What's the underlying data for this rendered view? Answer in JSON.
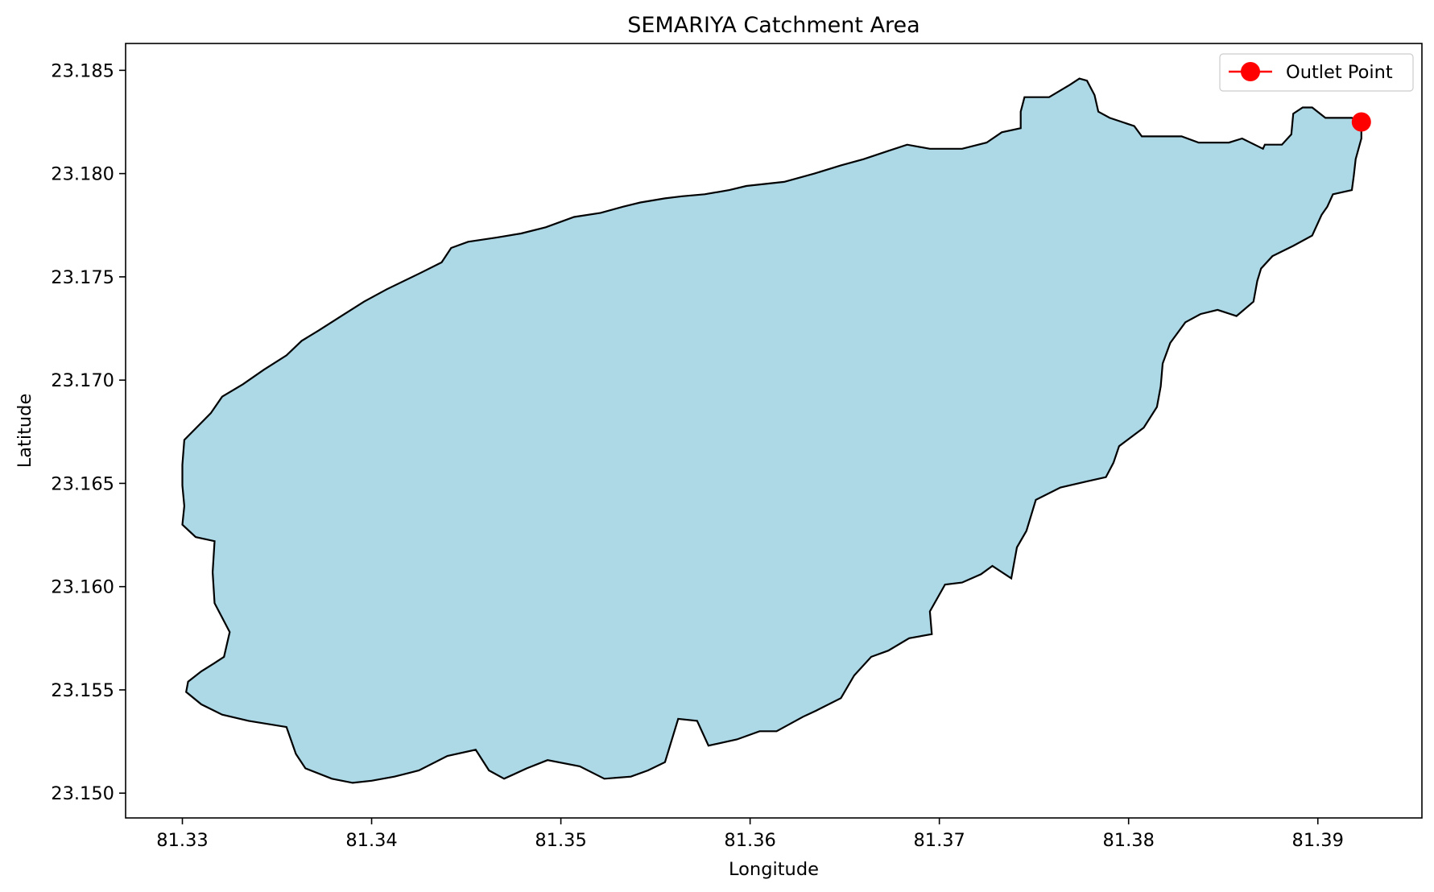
{
  "chart_data": {
    "type": "map",
    "title": "SEMARIYA Catchment Area",
    "xlabel": "Longitude",
    "ylabel": "Latitude",
    "xlim": [
      81.327,
      81.3955
    ],
    "ylim": [
      23.1488,
      23.1863
    ],
    "grid": false,
    "legend": {
      "placement": "top-right",
      "entries": [
        "Outlet Point"
      ]
    },
    "x_ticks": [
      81.33,
      81.34,
      81.35,
      81.36,
      81.37,
      81.38,
      81.39
    ],
    "x_tick_labels": [
      "81.33",
      "81.34",
      "81.35",
      "81.36",
      "81.37",
      "81.38",
      "81.39"
    ],
    "y_ticks": [
      23.15,
      23.155,
      23.16,
      23.165,
      23.17,
      23.175,
      23.18,
      23.185
    ],
    "y_tick_labels": [
      "23.150",
      "23.155",
      "23.160",
      "23.165",
      "23.170",
      "23.175",
      "23.180",
      "23.185"
    ],
    "series": [
      {
        "name": "Catchment",
        "type": "polygon",
        "fill_color": "#add8e6",
        "edge_color": "#000000",
        "points": [
          [
            81.3923,
            23.1826
          ],
          [
            81.392,
            23.1826
          ],
          [
            81.3918,
            23.1827
          ],
          [
            81.3904,
            23.1827
          ],
          [
            81.3897,
            23.1832
          ],
          [
            81.3892,
            23.1832
          ],
          [
            81.3887,
            23.1829
          ],
          [
            81.3886,
            23.1819
          ],
          [
            81.3881,
            23.1814
          ],
          [
            81.3872,
            23.1814
          ],
          [
            81.3871,
            23.1812
          ],
          [
            81.386,
            23.1817
          ],
          [
            81.3853,
            23.1815
          ],
          [
            81.3837,
            23.1815
          ],
          [
            81.3828,
            23.1818
          ],
          [
            81.3807,
            23.1818
          ],
          [
            81.3803,
            23.1823
          ],
          [
            81.379,
            23.1827
          ],
          [
            81.3784,
            23.183
          ],
          [
            81.3782,
            23.1838
          ],
          [
            81.3778,
            23.1845
          ],
          [
            81.3774,
            23.1846
          ],
          [
            81.3769,
            23.1843
          ],
          [
            81.3758,
            23.1837
          ],
          [
            81.3745,
            23.1837
          ],
          [
            81.3743,
            23.183
          ],
          [
            81.3743,
            23.1822
          ],
          [
            81.3733,
            23.182
          ],
          [
            81.3725,
            23.1815
          ],
          [
            81.3712,
            23.1812
          ],
          [
            81.3695,
            23.1812
          ],
          [
            81.3683,
            23.1814
          ],
          [
            81.3673,
            23.1811
          ],
          [
            81.366,
            23.1807
          ],
          [
            81.3648,
            23.1804
          ],
          [
            81.3634,
            23.18
          ],
          [
            81.3618,
            23.1796
          ],
          [
            81.3598,
            23.1794
          ],
          [
            81.3589,
            23.1792
          ],
          [
            81.3576,
            23.179
          ],
          [
            81.3564,
            23.1789
          ],
          [
            81.3555,
            23.1788
          ],
          [
            81.3542,
            23.1786
          ],
          [
            81.3533,
            23.1784
          ],
          [
            81.3521,
            23.1781
          ],
          [
            81.3507,
            23.1779
          ],
          [
            81.3492,
            23.1774
          ],
          [
            81.3479,
            23.1771
          ],
          [
            81.3466,
            23.1769
          ],
          [
            81.3451,
            23.1767
          ],
          [
            81.3442,
            23.1764
          ],
          [
            81.3437,
            23.1757
          ],
          [
            81.3426,
            23.1752
          ],
          [
            81.3408,
            23.1744
          ],
          [
            81.3396,
            23.1738
          ],
          [
            81.3384,
            23.1731
          ],
          [
            81.3372,
            23.1724
          ],
          [
            81.3363,
            23.1719
          ],
          [
            81.3355,
            23.1712
          ],
          [
            81.3343,
            23.1705
          ],
          [
            81.3332,
            23.1698
          ],
          [
            81.3321,
            23.1692
          ],
          [
            81.3315,
            23.1684
          ],
          [
            81.3301,
            23.1671
          ],
          [
            81.33,
            23.1659
          ],
          [
            81.33,
            23.1649
          ],
          [
            81.3301,
            23.1639
          ],
          [
            81.33,
            23.163
          ],
          [
            81.3307,
            23.1624
          ],
          [
            81.3317,
            23.1622
          ],
          [
            81.3316,
            23.1607
          ],
          [
            81.3317,
            23.1592
          ],
          [
            81.3325,
            23.1578
          ],
          [
            81.3322,
            23.1566
          ],
          [
            81.3317,
            23.1563
          ],
          [
            81.331,
            23.1559
          ],
          [
            81.3303,
            23.1554
          ],
          [
            81.3302,
            23.1549
          ],
          [
            81.331,
            23.1543
          ],
          [
            81.3321,
            23.1538
          ],
          [
            81.3335,
            23.1535
          ],
          [
            81.3355,
            23.1532
          ],
          [
            81.336,
            23.1519
          ],
          [
            81.3365,
            23.1512
          ],
          [
            81.3379,
            23.1507
          ],
          [
            81.339,
            23.1505
          ],
          [
            81.34,
            23.1506
          ],
          [
            81.3412,
            23.1508
          ],
          [
            81.3425,
            23.1511
          ],
          [
            81.344,
            23.1518
          ],
          [
            81.3455,
            23.1521
          ],
          [
            81.3462,
            23.1511
          ],
          [
            81.347,
            23.1507
          ],
          [
            81.3482,
            23.1512
          ],
          [
            81.3493,
            23.1516
          ],
          [
            81.351,
            23.1513
          ],
          [
            81.3523,
            23.1507
          ],
          [
            81.3537,
            23.1508
          ],
          [
            81.3546,
            23.1511
          ],
          [
            81.3555,
            23.1515
          ],
          [
            81.3562,
            23.1536
          ],
          [
            81.3572,
            23.1535
          ],
          [
            81.3578,
            23.1523
          ],
          [
            81.3593,
            23.1526
          ],
          [
            81.3605,
            23.153
          ],
          [
            81.3614,
            23.153
          ],
          [
            81.3628,
            23.1537
          ],
          [
            81.3635,
            23.154
          ],
          [
            81.3648,
            23.1546
          ],
          [
            81.3655,
            23.1557
          ],
          [
            81.3664,
            23.1566
          ],
          [
            81.3673,
            23.1569
          ],
          [
            81.3684,
            23.1575
          ],
          [
            81.3696,
            23.1577
          ],
          [
            81.3695,
            23.1588
          ],
          [
            81.3703,
            23.1601
          ],
          [
            81.3712,
            23.1602
          ],
          [
            81.3722,
            23.1606
          ],
          [
            81.3728,
            23.161
          ],
          [
            81.3738,
            23.1604
          ],
          [
            81.3741,
            23.1619
          ],
          [
            81.3746,
            23.1627
          ],
          [
            81.3751,
            23.1642
          ],
          [
            81.3764,
            23.1648
          ],
          [
            81.3778,
            23.1651
          ],
          [
            81.3788,
            23.1653
          ],
          [
            81.3792,
            23.166
          ],
          [
            81.3795,
            23.1668
          ],
          [
            81.3808,
            23.1677
          ],
          [
            81.3815,
            23.1687
          ],
          [
            81.3817,
            23.1697
          ],
          [
            81.3818,
            23.1708
          ],
          [
            81.3822,
            23.1718
          ],
          [
            81.383,
            23.1728
          ],
          [
            81.3838,
            23.1732
          ],
          [
            81.3847,
            23.1734
          ],
          [
            81.3857,
            23.1731
          ],
          [
            81.3866,
            23.1738
          ],
          [
            81.3868,
            23.1748
          ],
          [
            81.387,
            23.1754
          ],
          [
            81.3876,
            23.176
          ],
          [
            81.3887,
            23.1765
          ],
          [
            81.3897,
            23.177
          ],
          [
            81.3902,
            23.178
          ],
          [
            81.3905,
            23.1784
          ],
          [
            81.3908,
            23.179
          ],
          [
            81.3918,
            23.1792
          ],
          [
            81.3919,
            23.1799
          ],
          [
            81.392,
            23.1807
          ],
          [
            81.3923,
            23.1817
          ]
        ]
      },
      {
        "name": "Outlet Point",
        "type": "scatter",
        "color": "#ff0000",
        "points": [
          [
            81.3923,
            23.1825
          ]
        ]
      }
    ]
  }
}
